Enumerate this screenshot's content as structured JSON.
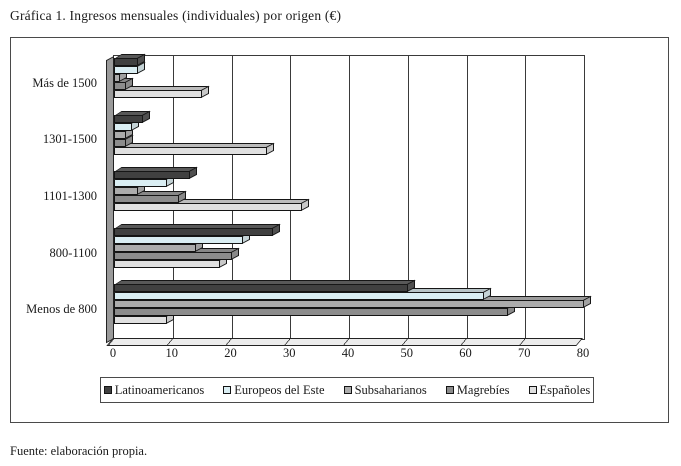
{
  "page": {
    "title": "Gráfica 1. Ingresos mensuales (individuales) por origen (€)",
    "source": "Fuente: elaboración propia."
  },
  "chart_data": {
    "type": "bar",
    "orientation": "horizontal",
    "title": "Gráfica 1. Ingresos mensuales (individuales) por origen (€)",
    "xlabel": "",
    "ylabel": "",
    "xlim": [
      0,
      80
    ],
    "xticks": [
      0,
      10,
      20,
      30,
      40,
      50,
      60,
      70,
      80
    ],
    "grid": true,
    "legend_position": "bottom",
    "categories": [
      "Más de 1500",
      "1301-1500",
      "1101-1300",
      "800-1100",
      "Menos de 800"
    ],
    "series": [
      {
        "name": "Latinoamericanos",
        "color": "#404040",
        "values": [
          4,
          5,
          13,
          27,
          50
        ]
      },
      {
        "name": "Europeos del Este",
        "color": "#daeef3",
        "values": [
          4,
          3,
          9,
          22,
          63
        ]
      },
      {
        "name": "Subsaharianos",
        "color": "#acacac",
        "values": [
          1,
          2,
          4,
          14,
          80
        ]
      },
      {
        "name": "Magrebíes",
        "color": "#8c8c8c",
        "values": [
          2,
          2,
          11,
          20,
          67
        ]
      },
      {
        "name": "Españoles",
        "color": "#e0e0e0",
        "values": [
          15,
          26,
          32,
          18,
          9
        ]
      }
    ]
  }
}
